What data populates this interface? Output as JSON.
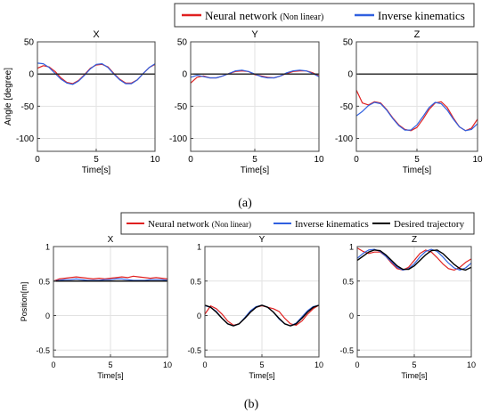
{
  "legend_a": {
    "items": [
      {
        "name": "Neural network",
        "suffix": "(Non linear)",
        "color": "#e02020"
      },
      {
        "name": "Inverse kinematics",
        "suffix": "",
        "color": "#3060e0"
      }
    ]
  },
  "legend_b": {
    "items": [
      {
        "name": "Neural network",
        "suffix": "(Non linear)",
        "color": "#e02020"
      },
      {
        "name": "Inverse kinematics",
        "suffix": "",
        "color": "#3060e0"
      },
      {
        "name": "Desired trajectory",
        "suffix": "",
        "color": "#000000"
      }
    ]
  },
  "panel_labels": {
    "a": "(a)",
    "b": "(b)"
  },
  "chart_data": [
    {
      "type": "line",
      "group": "a",
      "title": "X",
      "xlabel": "Time[s]",
      "ylabel": "Angle [degree]",
      "xlim": [
        0,
        10
      ],
      "ylim": [
        -120,
        50
      ],
      "xticks": [
        0,
        5,
        10
      ],
      "yticks": [
        50,
        0,
        -50,
        -100
      ],
      "grid": true,
      "x": [
        0,
        0.5,
        1,
        1.5,
        2,
        2.5,
        3,
        3.5,
        4,
        4.5,
        5,
        5.5,
        6,
        6.5,
        7,
        7.5,
        8,
        8.5,
        9,
        9.5,
        10
      ],
      "series": [
        {
          "name": "Neural network",
          "color": "#e02020",
          "values": [
            9,
            13,
            11,
            4,
            -6,
            -13,
            -15,
            -10,
            -1,
            9,
            14,
            15,
            11,
            1,
            -8,
            -14,
            -14,
            -9,
            1,
            10,
            15
          ]
        },
        {
          "name": "Inverse kinematics",
          "color": "#3060e0",
          "values": [
            17,
            16,
            10,
            1,
            -8,
            -14,
            -16,
            -11,
            -2,
            8,
            15,
            16,
            10,
            0,
            -9,
            -15,
            -15,
            -9,
            1,
            10,
            16
          ]
        },
        {
          "name": "Desired trajectory",
          "color": "#202020",
          "values": [
            0,
            0,
            0,
            0,
            0,
            0,
            0,
            0,
            0,
            0,
            0,
            0,
            0,
            0,
            0,
            0,
            0,
            0,
            0,
            0,
            0
          ]
        }
      ]
    },
    {
      "type": "line",
      "group": "a",
      "title": "Y",
      "xlabel": "Time[s]",
      "ylabel": "",
      "xlim": [
        0,
        10
      ],
      "ylim": [
        -120,
        50
      ],
      "xticks": [
        0,
        5,
        10
      ],
      "yticks": [
        50,
        0,
        -50,
        -100
      ],
      "grid": true,
      "x": [
        0,
        0.5,
        1,
        1.5,
        2,
        2.5,
        3,
        3.5,
        4,
        4.5,
        5,
        5.5,
        6,
        6.5,
        7,
        7.5,
        8,
        8.5,
        9,
        9.5,
        10
      ],
      "series": [
        {
          "name": "Neural network",
          "color": "#e02020",
          "values": [
            -14,
            -5,
            -3,
            -6,
            -6,
            -3,
            1,
            4,
            5,
            4,
            -1,
            -3,
            -5,
            -6,
            -3,
            1,
            4,
            5,
            5,
            2,
            -3
          ]
        },
        {
          "name": "Inverse kinematics",
          "color": "#3060e0",
          "values": [
            -5,
            -2,
            -4,
            -6,
            -6,
            -3,
            1,
            5,
            6,
            4,
            0,
            -4,
            -6,
            -6,
            -3,
            2,
            5,
            6,
            5,
            1,
            -4
          ]
        },
        {
          "name": "Desired trajectory",
          "color": "#202020",
          "values": [
            0,
            0,
            0,
            0,
            0,
            0,
            0,
            0,
            0,
            0,
            0,
            0,
            0,
            0,
            0,
            0,
            0,
            0,
            0,
            0,
            0
          ]
        }
      ]
    },
    {
      "type": "line",
      "group": "a",
      "title": "Z",
      "xlabel": "Time[s]",
      "ylabel": "",
      "xlim": [
        0,
        10
      ],
      "ylim": [
        -120,
        50
      ],
      "xticks": [
        0,
        5,
        10
      ],
      "yticks": [
        50,
        0,
        -50,
        -100
      ],
      "grid": true,
      "x": [
        0,
        0.5,
        1,
        1.5,
        2,
        2.5,
        3,
        3.5,
        4,
        4.5,
        5,
        5.5,
        6,
        6.5,
        7,
        7.5,
        8,
        8.5,
        9,
        9.5,
        10
      ],
      "series": [
        {
          "name": "Neural network",
          "color": "#e02020",
          "values": [
            -25,
            -45,
            -48,
            -43,
            -45,
            -55,
            -68,
            -79,
            -86,
            -88,
            -83,
            -70,
            -55,
            -45,
            -43,
            -52,
            -68,
            -82,
            -88,
            -84,
            -70
          ]
        },
        {
          "name": "Inverse kinematics",
          "color": "#3060e0",
          "values": [
            -65,
            -58,
            -49,
            -44,
            -46,
            -56,
            -69,
            -80,
            -87,
            -87,
            -79,
            -66,
            -52,
            -44,
            -46,
            -56,
            -70,
            -82,
            -88,
            -86,
            -77
          ]
        },
        {
          "name": "Desired trajectory",
          "color": "#202020",
          "values": [
            0,
            0,
            0,
            0,
            0,
            0,
            0,
            0,
            0,
            0,
            0,
            0,
            0,
            0,
            0,
            0,
            0,
            0,
            0,
            0,
            0
          ]
        }
      ]
    },
    {
      "type": "line",
      "group": "b",
      "title": "X",
      "xlabel": "Time[s]",
      "ylabel": "Position[m]",
      "xlim": [
        0,
        10
      ],
      "ylim": [
        -0.6,
        1
      ],
      "xticks": [
        0,
        5,
        10
      ],
      "yticks": [
        1,
        0.5,
        0,
        -0.5
      ],
      "grid": true,
      "x": [
        0,
        0.5,
        1,
        1.5,
        2,
        2.5,
        3,
        3.5,
        4,
        4.5,
        5,
        5.5,
        6,
        6.5,
        7,
        7.5,
        8,
        8.5,
        9,
        9.5,
        10
      ],
      "series": [
        {
          "name": "Neural network",
          "color": "#e02020",
          "values": [
            0.5,
            0.53,
            0.54,
            0.55,
            0.56,
            0.55,
            0.54,
            0.53,
            0.54,
            0.53,
            0.54,
            0.55,
            0.56,
            0.55,
            0.57,
            0.56,
            0.55,
            0.54,
            0.55,
            0.54,
            0.53
          ]
        },
        {
          "name": "Inverse kinematics",
          "color": "#3060e0",
          "values": [
            0.5,
            0.51,
            0.52,
            0.52,
            0.53,
            0.52,
            0.51,
            0.51,
            0.51,
            0.52,
            0.52,
            0.53,
            0.53,
            0.52,
            0.51,
            0.51,
            0.51,
            0.52,
            0.52,
            0.52,
            0.51
          ]
        },
        {
          "name": "Desired trajectory",
          "color": "#000000",
          "values": [
            0.5,
            0.5,
            0.5,
            0.5,
            0.5,
            0.5,
            0.5,
            0.5,
            0.5,
            0.5,
            0.5,
            0.5,
            0.5,
            0.5,
            0.5,
            0.5,
            0.5,
            0.5,
            0.5,
            0.5,
            0.5
          ]
        }
      ]
    },
    {
      "type": "line",
      "group": "b",
      "title": "Y",
      "xlabel": "Time[s]",
      "ylabel": "",
      "xlim": [
        0,
        10
      ],
      "ylim": [
        -0.6,
        1
      ],
      "xticks": [
        0,
        5,
        10
      ],
      "yticks": [
        1,
        0.5,
        0,
        -0.5
      ],
      "grid": true,
      "x": [
        0,
        0.5,
        1,
        1.5,
        2,
        2.5,
        3,
        3.5,
        4,
        4.5,
        5,
        5.5,
        6,
        6.5,
        7,
        7.5,
        8,
        8.5,
        9,
        9.5,
        10
      ],
      "series": [
        {
          "name": "Neural network",
          "color": "#e02020",
          "values": [
            0.02,
            0.14,
            0.1,
            0.02,
            -0.08,
            -0.14,
            -0.12,
            -0.04,
            0.05,
            0.12,
            0.14,
            0.12,
            0.1,
            0.06,
            -0.04,
            -0.12,
            -0.14,
            -0.08,
            0.02,
            0.1,
            0.15
          ]
        },
        {
          "name": "Inverse kinematics",
          "color": "#3060e0",
          "values": [
            0.14,
            0.12,
            0.06,
            -0.04,
            -0.12,
            -0.15,
            -0.12,
            -0.03,
            0.07,
            0.13,
            0.15,
            0.12,
            0.05,
            -0.05,
            -0.12,
            -0.15,
            -0.11,
            -0.02,
            0.07,
            0.13,
            0.15
          ]
        },
        {
          "name": "Desired trajectory",
          "color": "#000000",
          "values": [
            0.15,
            0.12,
            0.05,
            -0.04,
            -0.12,
            -0.15,
            -0.12,
            -0.04,
            0.05,
            0.12,
            0.15,
            0.12,
            0.05,
            -0.04,
            -0.12,
            -0.15,
            -0.12,
            -0.04,
            0.05,
            0.12,
            0.15
          ]
        }
      ]
    },
    {
      "type": "line",
      "group": "b",
      "title": "Z",
      "xlabel": "Time[s]",
      "ylabel": "",
      "xlim": [
        0,
        10
      ],
      "ylim": [
        -0.6,
        1
      ],
      "xticks": [
        0,
        5,
        10
      ],
      "yticks": [
        1,
        0.5,
        0,
        -0.5
      ],
      "grid": true,
      "x": [
        0,
        0.5,
        1,
        1.5,
        2,
        2.5,
        3,
        3.5,
        4,
        4.5,
        5,
        5.5,
        6,
        6.5,
        7,
        7.5,
        8,
        8.5,
        9,
        9.5,
        10
      ],
      "series": [
        {
          "name": "Neural network",
          "color": "#e02020",
          "values": [
            0.98,
            0.93,
            0.9,
            0.92,
            0.92,
            0.86,
            0.76,
            0.68,
            0.66,
            0.7,
            0.8,
            0.9,
            0.95,
            0.92,
            0.84,
            0.75,
            0.68,
            0.66,
            0.7,
            0.77,
            0.82
          ]
        },
        {
          "name": "Inverse kinematics",
          "color": "#3060e0",
          "values": [
            0.83,
            0.9,
            0.95,
            0.96,
            0.93,
            0.86,
            0.78,
            0.7,
            0.66,
            0.68,
            0.75,
            0.85,
            0.93,
            0.96,
            0.93,
            0.85,
            0.76,
            0.69,
            0.66,
            0.69,
            0.76
          ]
        },
        {
          "name": "Desired trajectory",
          "color": "#000000",
          "values": [
            0.8,
            0.86,
            0.92,
            0.95,
            0.94,
            0.88,
            0.8,
            0.72,
            0.67,
            0.67,
            0.72,
            0.8,
            0.88,
            0.94,
            0.95,
            0.9,
            0.82,
            0.74,
            0.68,
            0.66,
            0.7
          ]
        }
      ]
    }
  ]
}
